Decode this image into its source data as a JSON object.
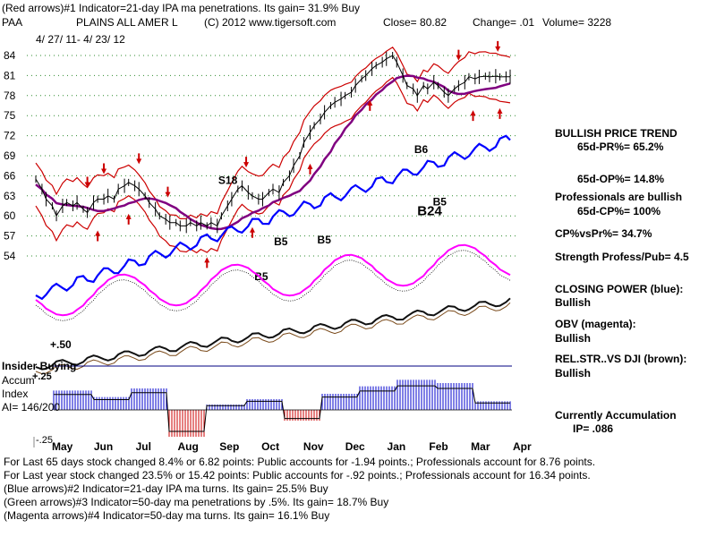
{
  "header": {
    "line1": "(Red arrows)#1 Indicator=21-day IPA ma penetrations.  Its gain= 31.9% Buy",
    "symbol": "PAA",
    "company": "PLAINS ALL AMER L",
    "copyright": "(C) 2012 www.tigersoft.com",
    "close_text": "Close=  80.82",
    "change_text": "Change= .01",
    "volume_text": "Volume= 3228",
    "date_range": "4/ 27/ 11-  4/ 23/ 12"
  },
  "right_panel": {
    "trend_title": "BULLISH PRICE TREND",
    "pr": "65d-PR%= 65.2%",
    "op": "65d-OP%= 14.8%",
    "pros_bullish": "Professionals are bullish",
    "cp": "65d-CP%= 100%",
    "cpvspr": "CP%vsPr%=  34.7%",
    "strength": "Strength Profess/Pub= 4.5",
    "closing_power_title": "CLOSING POWER (blue):",
    "closing_power_value": "Bullish",
    "obv_title": "OBV (magenta):",
    "obv_value": "Bullish",
    "relstr_title": "REL.STR..VS DJI (brown):",
    "relstr_value": "Bullish",
    "accum_title": "Currently Accumulation",
    "ip_value": "IP=  .086"
  },
  "lower_left": {
    "plus50": "+.50",
    "insider": "Insider Buying",
    "accum": "Accum",
    "index": "Index",
    "ai": "AI= 146/200",
    "plus25": "+.25",
    "minus25": "-.25"
  },
  "footer": {
    "line1": "For Last 65 days stock changed  8.4% or  6.82 points:  Public accounts for -1.94 points.;  Professionals account for  8.76 points.",
    "line2": "For Last year stock changed  23.5% or  15.42 points:  Public accounts for -.92 points.;  Professionals account for  16.34 points.",
    "line3": "(Blue arrows)#2 Indicator=21-day IPA ma turns. Its gain= 25.5% Buy",
    "line4": "(Green arrows)#3 Indicator=50-day ma penetrations by .5%. Its gain= 18.7% Buy",
    "line5": "(Magenta arrows)#4 Indicator=50-day ma turns. Its gain= 16.1% Buy"
  },
  "chart_data": {
    "type": "line",
    "title": "PLAINS ALL AMER L (PAA) daily price with bands, indicators and accumulation index",
    "xlabel": "",
    "ylabel": "",
    "x_months": [
      "May",
      "Jun",
      "Jul",
      "Aug",
      "Sep",
      "Oct",
      "Nov",
      "Dec",
      "Jan",
      "Feb",
      "Mar",
      "Apr"
    ],
    "y_ticks": [
      84,
      81,
      78,
      75,
      72,
      69,
      66,
      63,
      60,
      57,
      54
    ],
    "ylim": [
      52,
      86
    ],
    "annotations": [
      {
        "label": "S18",
        "x": 8.85,
        "y": 64.8
      },
      {
        "label": "B5",
        "x": 19.25,
        "y": 61.6
      },
      {
        "label": "B5",
        "x": 11.55,
        "y": 55.6
      },
      {
        "label": "B5",
        "x": 13.65,
        "y": 55.9
      },
      {
        "label": "B6",
        "x": 18.35,
        "y": 69.4
      },
      {
        "label": "B24",
        "x": 18.5,
        "y": 60.1
      },
      {
        "label": "B5",
        "x": 10.6,
        "y": 50.4
      }
    ],
    "series": [
      {
        "name": "Price (closing)",
        "color": "#000000",
        "x": [
          0,
          0.3,
          0.5,
          0.8,
          1,
          1.3,
          1.5,
          1.8,
          2,
          2.3,
          2.5,
          2.8,
          3,
          3.3,
          3.5,
          3.8,
          4,
          4.3,
          4.5,
          4.8,
          5,
          5.3,
          5.5,
          5.8,
          6,
          6.3,
          6.5,
          6.8,
          7,
          7.3,
          7.5,
          7.8,
          8,
          8.3,
          8.5,
          8.8,
          9,
          9.3,
          9.5,
          9.8,
          10,
          10.3,
          10.5,
          10.8,
          11,
          11.3,
          11.5,
          11.8,
          12,
          12.3,
          12.5,
          12.8,
          13,
          13.3,
          13.5,
          13.8,
          14,
          14.3,
          14.5,
          14.8,
          15,
          15.3,
          15.5,
          15.8,
          16,
          16.3,
          16.5,
          16.8,
          17,
          17.3,
          17.5,
          17.8,
          18,
          18.3,
          18.5,
          18.8,
          19,
          19.3,
          19.5,
          19.8,
          20,
          20.3,
          20.5,
          20.8,
          21,
          21.3,
          21.5,
          21.8,
          22,
          22.3,
          22.5,
          22.8,
          23
        ],
        "values": [
          65.5,
          64,
          62.5,
          61.5,
          60,
          61.5,
          62,
          61.5,
          62,
          61,
          60.5,
          62,
          62.5,
          62.5,
          63,
          62.5,
          64,
          64.5,
          65,
          64.5,
          64,
          63,
          62,
          61,
          60,
          59.5,
          59,
          59,
          58.5,
          58.5,
          59,
          58.5,
          59,
          58.5,
          59,
          58.5,
          60,
          61.5,
          62.5,
          64,
          64.5,
          63.5,
          63,
          62.5,
          62.5,
          63.5,
          64,
          63.5,
          65,
          66,
          67.5,
          69,
          71,
          72.5,
          73.5,
          74.5,
          75.5,
          76.5,
          77,
          77.5,
          78,
          78.5,
          79.5,
          80.5,
          81,
          82,
          82.5,
          83,
          83.5,
          84,
          83,
          81,
          79.5,
          79,
          78,
          79.5,
          79,
          80,
          79.5,
          78.5,
          78,
          79,
          79.5,
          80,
          80.82,
          80.5,
          80.8,
          80.9,
          80.8,
          80.9,
          80.8,
          80.82,
          80.82
        ]
      },
      {
        "name": "21-day upper band",
        "color": "#cc0000"
      },
      {
        "name": "21-day lower band",
        "color": "#cc0000"
      },
      {
        "name": "50-day moving average",
        "color": "#800080"
      },
      {
        "name": "Closing Power",
        "color": "#0000ff"
      },
      {
        "name": "OBV",
        "color": "#ff00ff"
      },
      {
        "name": "Rel.Str vs DJI",
        "color": "#7a4a1a"
      },
      {
        "name": "Accumulation Index",
        "color": "#0000cc"
      }
    ],
    "accum_series": [
      {
        "month": "May",
        "value": 0.18
      },
      {
        "month": "Jun",
        "value": 0.12
      },
      {
        "month": "Jul",
        "value": 0.2
      },
      {
        "month": "Aug",
        "value": -0.25
      },
      {
        "month": "Sep",
        "value": 0.05
      },
      {
        "month": "Oct",
        "value": 0.1
      },
      {
        "month": "Nov",
        "value": -0.1
      },
      {
        "month": "Dec",
        "value": 0.15
      },
      {
        "month": "Jan",
        "value": 0.22
      },
      {
        "month": "Feb",
        "value": 0.28
      },
      {
        "month": "Mar",
        "value": 0.25
      },
      {
        "month": "Apr",
        "value": 0.08
      }
    ]
  }
}
